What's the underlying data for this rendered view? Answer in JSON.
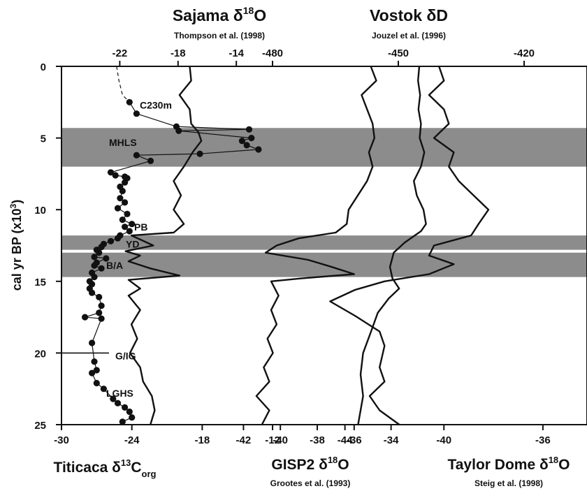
{
  "chart_data": {
    "type": "line",
    "y_axis": {
      "label": "cal yr BP (x10",
      "label_exp": "3",
      "label_close": ")",
      "range": [
        0,
        25
      ],
      "ticks": [
        "0",
        "5",
        "10",
        "15",
        "20",
        "25"
      ]
    },
    "shaded_intervals": [
      [
        4.3,
        7.0
      ],
      [
        11.8,
        12.8
      ],
      [
        13.0,
        14.7
      ]
    ],
    "zone_labels": [
      {
        "text": "C230m",
        "y": 2.7
      },
      {
        "text": "MHLS",
        "y": 5.3
      },
      {
        "text": "PB",
        "y": 11.2
      },
      {
        "text": "YD",
        "y": 12.4
      },
      {
        "text": "B/A",
        "y": 13.9
      },
      {
        "text": "G/IG",
        "y": 20.2
      },
      {
        "text": "LGHS",
        "y": 22.8
      }
    ],
    "records": [
      {
        "id": "titicaca",
        "name": "Titicaca δ",
        "name_sup": "13",
        "name_rest": "C",
        "name_sub": "org",
        "axis_range": [
          -30,
          -9.5
        ],
        "axis_ticks": [
          "-30",
          "-24",
          "-18",
          "-12"
        ],
        "points": [
          [
            -24.2,
            2.5
          ],
          [
            -23.6,
            3.3
          ],
          [
            -20.2,
            4.2
          ],
          [
            -14.0,
            4.4
          ],
          [
            -20.0,
            4.5
          ],
          [
            -13.8,
            5.0
          ],
          [
            -14.6,
            5.2
          ],
          [
            -14.2,
            5.5
          ],
          [
            -13.2,
            5.8
          ],
          [
            -18.2,
            6.1
          ],
          [
            -23.6,
            6.2
          ],
          [
            -22.4,
            6.6
          ],
          [
            -25.8,
            7.4
          ],
          [
            -25.4,
            7.6
          ],
          [
            -24.6,
            7.7
          ],
          [
            -24.4,
            7.8
          ],
          [
            -24.6,
            8.1
          ],
          [
            -25.0,
            8.4
          ],
          [
            -24.8,
            8.7
          ],
          [
            -25.0,
            9.2
          ],
          [
            -24.6,
            9.5
          ],
          [
            -25.2,
            9.9
          ],
          [
            -24.4,
            10.3
          ],
          [
            -24.8,
            10.7
          ],
          [
            -24.0,
            11.0
          ],
          [
            -24.6,
            11.2
          ],
          [
            -24.2,
            11.5
          ],
          [
            -25.0,
            11.8
          ],
          [
            -25.2,
            12.0
          ],
          [
            -25.8,
            12.2
          ],
          [
            -26.4,
            12.4
          ],
          [
            -26.6,
            12.6
          ],
          [
            -27.0,
            12.8
          ],
          [
            -26.8,
            13.0
          ],
          [
            -27.2,
            13.3
          ],
          [
            -26.2,
            13.4
          ],
          [
            -27.0,
            13.7
          ],
          [
            -27.2,
            13.9
          ],
          [
            -26.6,
            14.1
          ],
          [
            -27.4,
            14.4
          ],
          [
            -27.2,
            14.7
          ],
          [
            -27.6,
            15.0
          ],
          [
            -27.4,
            15.2
          ],
          [
            -27.6,
            15.5
          ],
          [
            -27.4,
            15.8
          ],
          [
            -26.8,
            16.1
          ],
          [
            -26.6,
            16.7
          ],
          [
            -26.8,
            17.2
          ],
          [
            -28.0,
            17.5
          ],
          [
            -26.6,
            17.6
          ],
          [
            -27.4,
            19.3
          ],
          [
            -27.2,
            20.6
          ],
          [
            -27.0,
            21.2
          ],
          [
            -27.4,
            21.4
          ],
          [
            -27.0,
            22.1
          ],
          [
            -26.4,
            22.5
          ],
          [
            -25.6,
            23.2
          ],
          [
            -25.2,
            23.5
          ],
          [
            -24.6,
            23.8
          ],
          [
            -24.2,
            24.1
          ],
          [
            -24.0,
            24.5
          ],
          [
            -24.8,
            24.8
          ]
        ],
        "dashed_segment": [
          [
            -25.3,
            0.0
          ],
          [
            -25.1,
            1.0
          ],
          [
            -24.8,
            2.0
          ],
          [
            -24.2,
            2.5
          ]
        ]
      },
      {
        "id": "sajama",
        "name": "Sajama δ",
        "name_sup": "18",
        "name_rest": "O",
        "citation": "Thompson et al. (1998)",
        "axis_range": [
          -26,
          -9.5
        ],
        "axis_ticks": [
          "-22",
          "-18",
          "-14"
        ],
        "points": [
          [
            -17.2,
            0.0
          ],
          [
            -17.1,
            1.0
          ],
          [
            -17.9,
            2.0
          ],
          [
            -17.2,
            3.0
          ],
          [
            -17.1,
            4.0
          ],
          [
            -16.6,
            4.6
          ],
          [
            -16.4,
            5.2
          ],
          [
            -17.0,
            6.0
          ],
          [
            -17.6,
            7.0
          ],
          [
            -18.3,
            8.0
          ],
          [
            -17.8,
            9.0
          ],
          [
            -18.3,
            10.0
          ],
          [
            -17.6,
            11.0
          ],
          [
            -18.3,
            11.6
          ],
          [
            -21.2,
            11.8
          ],
          [
            -19.7,
            12.5
          ],
          [
            -21.6,
            12.9
          ],
          [
            -20.6,
            13.2
          ],
          [
            -21.4,
            13.6
          ],
          [
            -19.9,
            14.1
          ],
          [
            -17.9,
            14.6
          ],
          [
            -21.4,
            14.9
          ],
          [
            -20.6,
            15.5
          ],
          [
            -21.4,
            16.0
          ],
          [
            -20.6,
            17.0
          ],
          [
            -21.2,
            18.0
          ],
          [
            -20.8,
            19.0
          ],
          [
            -21.3,
            20.0
          ],
          [
            -20.6,
            21.0
          ],
          [
            -20.4,
            22.0
          ],
          [
            -19.8,
            23.0
          ],
          [
            -19.6,
            24.0
          ],
          [
            -19.9,
            25.0
          ]
        ]
      },
      {
        "id": "gisp2",
        "name": "GISP2 δ",
        "name_sup": "18",
        "name_rest": "O",
        "citation": "Grootes et al. (1993)",
        "axis_range": [
          -43,
          -33
        ],
        "axis_ticks": [
          "-42",
          "-40",
          "-38",
          "-36",
          "-34"
        ],
        "points": [
          [
            -35.1,
            0.0
          ],
          [
            -34.8,
            1.0
          ],
          [
            -35.6,
            2.0
          ],
          [
            -35.3,
            3.0
          ],
          [
            -35.0,
            4.0
          ],
          [
            -34.9,
            5.0
          ],
          [
            -35.2,
            6.0
          ],
          [
            -35.0,
            7.0
          ],
          [
            -35.3,
            8.0
          ],
          [
            -35.8,
            9.0
          ],
          [
            -36.3,
            10.0
          ],
          [
            -36.4,
            11.0
          ],
          [
            -37.0,
            11.6
          ],
          [
            -39.0,
            12.0
          ],
          [
            -40.2,
            12.5
          ],
          [
            -40.8,
            13.0
          ],
          [
            -38.5,
            13.5
          ],
          [
            -37.2,
            14.0
          ],
          [
            -36.0,
            14.5
          ],
          [
            -38.9,
            14.8
          ],
          [
            -40.5,
            15.0
          ],
          [
            -40.1,
            16.0
          ],
          [
            -40.5,
            17.0
          ],
          [
            -40.2,
            18.0
          ],
          [
            -40.7,
            19.0
          ],
          [
            -40.4,
            20.0
          ],
          [
            -40.9,
            21.0
          ],
          [
            -40.6,
            22.0
          ],
          [
            -41.3,
            23.0
          ],
          [
            -40.6,
            24.0
          ],
          [
            -41.0,
            25.0
          ]
        ]
      },
      {
        "id": "vostok",
        "name": "Vostok δD",
        "citation": "Jouzel et al. (1996)",
        "axis_range": [
          -500,
          -405
        ],
        "axis_ticks": [
          "-480",
          "-450",
          "-420"
        ],
        "points": [
          [
            -445.0,
            0.0
          ],
          [
            -445.3,
            1.0
          ],
          [
            -444.8,
            2.0
          ],
          [
            -445.2,
            3.0
          ],
          [
            -444.6,
            4.0
          ],
          [
            -444.9,
            5.0
          ],
          [
            -443.8,
            6.0
          ],
          [
            -444.6,
            7.0
          ],
          [
            -446.3,
            8.0
          ],
          [
            -445.6,
            9.0
          ],
          [
            -444.0,
            10.0
          ],
          [
            -443.4,
            11.0
          ],
          [
            -444.6,
            11.5
          ],
          [
            -448.5,
            12.3
          ],
          [
            -451.1,
            13.0
          ],
          [
            -452.0,
            14.0
          ],
          [
            -451.4,
            14.8
          ],
          [
            -449.8,
            15.5
          ],
          [
            -452.3,
            16.2
          ],
          [
            -454.9,
            17.2
          ],
          [
            -456.5,
            18.5
          ],
          [
            -458.4,
            20.0
          ],
          [
            -459.0,
            21.5
          ],
          [
            -458.4,
            23.0
          ],
          [
            -459.0,
            24.0
          ],
          [
            -459.6,
            25.0
          ]
        ]
      },
      {
        "id": "taylor",
        "name": "Taylor Dome δ",
        "name_sup": "18",
        "name_rest": "O",
        "citation": "Steig et al. (1998)",
        "axis_range": [
          -48,
          -34.5
        ],
        "axis_ticks": [
          "-44",
          "-40",
          "-36"
        ],
        "points": [
          [
            -40.2,
            0.0
          ],
          [
            -40.0,
            1.0
          ],
          [
            -40.6,
            2.0
          ],
          [
            -40.0,
            3.0
          ],
          [
            -39.8,
            4.0
          ],
          [
            -40.4,
            5.0
          ],
          [
            -39.6,
            6.0
          ],
          [
            -39.8,
            7.0
          ],
          [
            -39.4,
            8.0
          ],
          [
            -38.8,
            9.0
          ],
          [
            -38.2,
            10.0
          ],
          [
            -38.6,
            11.0
          ],
          [
            -38.9,
            11.8
          ],
          [
            -40.4,
            12.5
          ],
          [
            -40.6,
            13.2
          ],
          [
            -39.6,
            13.8
          ],
          [
            -40.6,
            14.5
          ],
          [
            -42.4,
            15.0
          ],
          [
            -43.6,
            15.6
          ],
          [
            -44.6,
            16.4
          ],
          [
            -43.6,
            17.4
          ],
          [
            -42.6,
            18.5
          ],
          [
            -42.4,
            19.5
          ],
          [
            -42.6,
            21.0
          ],
          [
            -42.4,
            22.0
          ],
          [
            -43.0,
            23.0
          ],
          [
            -42.6,
            24.0
          ],
          [
            -41.8,
            25.0
          ]
        ]
      }
    ]
  }
}
